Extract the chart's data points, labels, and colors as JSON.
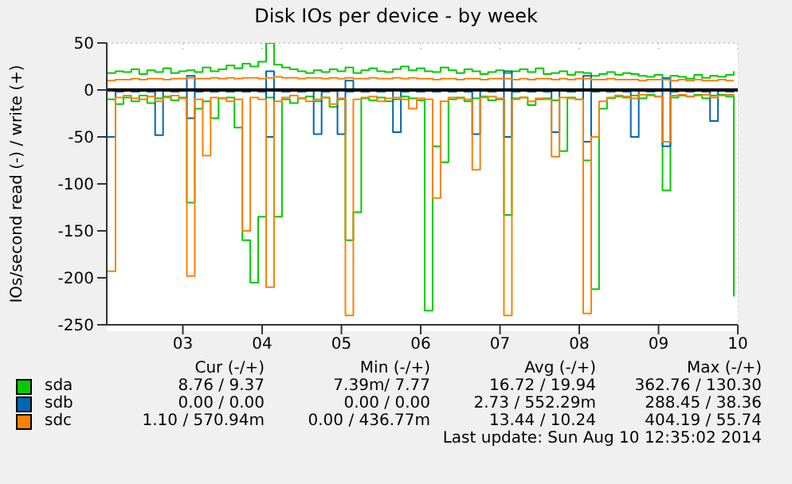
{
  "chart_data": {
    "type": "step",
    "title": "Disk IOs per device - by week",
    "ylabel": "IOs/second read (-) / write (+)",
    "x": [
      2.05,
      2.15,
      2.25,
      2.35,
      2.45,
      2.55,
      2.65,
      2.75,
      2.85,
      2.95,
      3.05,
      3.15,
      3.25,
      3.35,
      3.45,
      3.55,
      3.65,
      3.75,
      3.85,
      3.95,
      4.05,
      4.15,
      4.25,
      4.35,
      4.45,
      4.55,
      4.65,
      4.75,
      4.85,
      4.95,
      5.05,
      5.15,
      5.25,
      5.35,
      5.45,
      5.55,
      5.65,
      5.75,
      5.85,
      5.95,
      6.05,
      6.15,
      6.25,
      6.35,
      6.45,
      6.55,
      6.65,
      6.75,
      6.85,
      6.95,
      7.05,
      7.15,
      7.25,
      7.35,
      7.45,
      7.55,
      7.65,
      7.75,
      7.85,
      7.95,
      8.05,
      8.15,
      8.25,
      8.35,
      8.45,
      8.55,
      8.65,
      8.75,
      8.85,
      8.95,
      9.05,
      9.15,
      9.25,
      9.35,
      9.45,
      9.55,
      9.65,
      9.75,
      9.85,
      9.95
    ],
    "xlim": [
      2.04,
      10
    ],
    "xticks": [
      {
        "value": 3,
        "label": "03"
      },
      {
        "value": 4,
        "label": "04"
      },
      {
        "value": 5,
        "label": "05"
      },
      {
        "value": 6,
        "label": "06"
      },
      {
        "value": 7,
        "label": "07"
      },
      {
        "value": 8,
        "label": "08"
      },
      {
        "value": 9,
        "label": "09"
      },
      {
        "value": 10,
        "label": "10"
      }
    ],
    "ylim": [
      -250,
      50
    ],
    "yticks": [
      -250,
      -200,
      -150,
      -100,
      -50,
      0,
      50
    ],
    "grid": true,
    "legend": "bottom",
    "ref_lines": [
      {
        "axis": "y",
        "value": 0,
        "color": "#000000"
      }
    ],
    "series": [
      {
        "name": "sda",
        "color": "#00cc00",
        "values": [
          18,
          20,
          19,
          22,
          17,
          21,
          19,
          23,
          18,
          20,
          21,
          19,
          24,
          20,
          22,
          26,
          23,
          28,
          25,
          30,
          50,
          27,
          24,
          22,
          20,
          18,
          21,
          19,
          22,
          20,
          24,
          18,
          21,
          23,
          20,
          19,
          22,
          25,
          21,
          23,
          20,
          19,
          24,
          21,
          18,
          22,
          20,
          17,
          19,
          21,
          18,
          20,
          22,
          19,
          23,
          17,
          18,
          20,
          16,
          19,
          18,
          15,
          17,
          19,
          16,
          18,
          17,
          15,
          14,
          16,
          13,
          15,
          14,
          12,
          16,
          13,
          15,
          14,
          16,
          20
        ]
      },
      {
        "color": "#00cc00",
        "values": [
          -10,
          -15,
          -8,
          -12,
          -6,
          -14,
          -9,
          -7,
          -11,
          -8,
          -120,
          -20,
          -12,
          -30,
          -9,
          -8,
          -40,
          -160,
          -205,
          -135,
          -8,
          -135,
          -10,
          -14,
          -9,
          -7,
          -12,
          -8,
          -18,
          -10,
          -160,
          -130,
          -9,
          -11,
          -8,
          -12,
          -10,
          -7,
          -9,
          -11,
          -235,
          -60,
          -77,
          -10,
          -8,
          -12,
          -9,
          -7,
          -11,
          -10,
          -133,
          -9,
          -8,
          -16,
          -10,
          -9,
          -11,
          -65,
          -8,
          -10,
          -75,
          -212,
          -20,
          -9,
          -7,
          -8,
          -6,
          -9,
          -5,
          -7,
          -107,
          -8,
          -6,
          -7,
          -5,
          -9,
          -6,
          -5,
          -7,
          -220
        ]
      },
      {
        "name": "sdb",
        "color": "#0066b3",
        "values": [
          0,
          0,
          0,
          0,
          0,
          0,
          0,
          0,
          0,
          0,
          15,
          0,
          0,
          0,
          0,
          0,
          0,
          0,
          0,
          0,
          20,
          0,
          0,
          0,
          0,
          0,
          0,
          0,
          0,
          0,
          10,
          0,
          0,
          0,
          0,
          0,
          0,
          0,
          0,
          0,
          0,
          0,
          0,
          0,
          0,
          0,
          0,
          0,
          0,
          0,
          20,
          0,
          0,
          0,
          0,
          0,
          0,
          0,
          0,
          0,
          15,
          0,
          0,
          0,
          0,
          0,
          0,
          0,
          0,
          0,
          12,
          0,
          0,
          0,
          0,
          0,
          0,
          0,
          0,
          0
        ]
      },
      {
        "color": "#0066b3",
        "values": [
          -50,
          -2,
          -1,
          -2,
          -1,
          -2,
          -48,
          -1,
          -2,
          -1,
          -30,
          -2,
          -1,
          -2,
          -1,
          -2,
          -1,
          -2,
          -1,
          -2,
          -50,
          -1,
          -2,
          -1,
          -2,
          -1,
          -47,
          -2,
          -1,
          -47,
          -2,
          -1,
          -2,
          -1,
          -2,
          -1,
          -45,
          -2,
          -1,
          -2,
          -1,
          -2,
          -1,
          -2,
          -1,
          -2,
          -47,
          -1,
          -2,
          -1,
          -50,
          -2,
          -1,
          -2,
          -1,
          -2,
          -45,
          -1,
          -2,
          -1,
          -55,
          -2,
          -1,
          -2,
          -1,
          -2,
          -50,
          -1,
          -2,
          -1,
          -60,
          -2,
          -1,
          -2,
          -1,
          -2,
          -33,
          -1,
          -2,
          -1
        ]
      },
      {
        "name": "sdc",
        "color": "#ff8000",
        "values": [
          10,
          11,
          11,
          12,
          11,
          12,
          12,
          11,
          12,
          12,
          13,
          12,
          12,
          13,
          12,
          13,
          12,
          13,
          13,
          12,
          13,
          14,
          13,
          13,
          12,
          13,
          13,
          12,
          13,
          12,
          13,
          12,
          12,
          13,
          12,
          12,
          13,
          12,
          13,
          12,
          12,
          11,
          12,
          12,
          11,
          12,
          12,
          11,
          12,
          12,
          12,
          11,
          12,
          11,
          12,
          12,
          11,
          12,
          11,
          12,
          12,
          11,
          11,
          12,
          11,
          11,
          11,
          10,
          11,
          11,
          11,
          10,
          11,
          10,
          11,
          10,
          10,
          11,
          10,
          10
        ]
      },
      {
        "color": "#ff8000",
        "values": [
          -193,
          -8,
          -6,
          -9,
          -10,
          -7,
          -12,
          -8,
          -6,
          -9,
          -198,
          -10,
          -70,
          -8,
          -9,
          -12,
          -10,
          -150,
          -8,
          -10,
          -210,
          -12,
          -8,
          -6,
          -9,
          -12,
          -10,
          -8,
          -15,
          -9,
          -240,
          -10,
          -8,
          -7,
          -12,
          -9,
          -8,
          -10,
          -20,
          -9,
          -10,
          -115,
          -12,
          -8,
          -9,
          -10,
          -85,
          -8,
          -7,
          -9,
          -240,
          -10,
          -8,
          -12,
          -9,
          -10,
          -71,
          -8,
          -9,
          -10,
          -238,
          -50,
          -12,
          -8,
          -6,
          -7,
          -9,
          -5,
          -6,
          -7,
          -55,
          -6,
          -5,
          -7,
          -6,
          -5,
          -8,
          -6,
          -5,
          -6
        ]
      }
    ],
    "annotations": [
      "Cur (-/+)",
      "Min (-/+)",
      "Avg (-/+)",
      "Max (-/+)",
      "8.76 / 9.37",
      "7.39m/ 7.77",
      "16.72 / 19.94",
      "362.76 / 130.30",
      "0.00 / 0.00",
      "0.00 / 0.00",
      "2.73 / 552.29m",
      "288.45 / 38.36",
      "1.10 / 570.94m",
      "0.00 / 436.77m",
      "13.44 / 10.24",
      "404.19 / 55.74",
      "Last update: Sun Aug 10 12:35:02 2014"
    ]
  }
}
